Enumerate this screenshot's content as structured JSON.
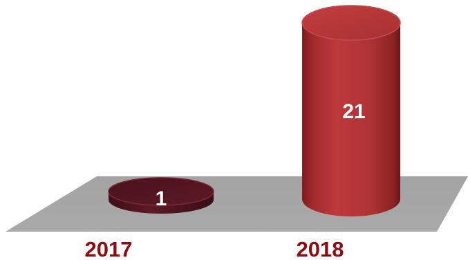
{
  "chart_data": {
    "type": "bar",
    "style": "3d-cylinder",
    "categories": [
      "2017",
      "2018"
    ],
    "values": [
      1,
      21
    ],
    "data_labels": [
      "1",
      "21"
    ],
    "title": "",
    "xlabel": "",
    "ylabel": "",
    "ylim": [
      0,
      21
    ],
    "grid": false,
    "legend": "none"
  },
  "colors": {
    "floor": "#a6a6a6",
    "bar_2017": "#5a1824",
    "bar_2018": "#b03232",
    "category_text": "#8b0d12",
    "data_label_text": "#ffffff"
  }
}
